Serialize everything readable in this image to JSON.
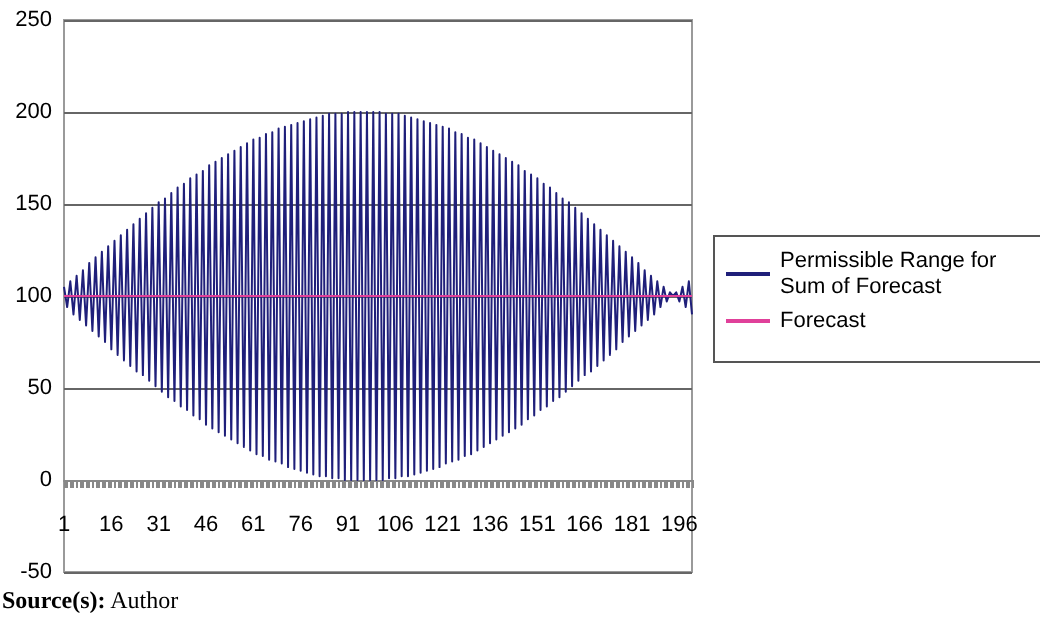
{
  "chart_data": {
    "type": "line",
    "categories": [
      "1",
      null,
      null,
      null,
      null,
      null,
      null,
      null,
      null,
      null,
      null,
      null,
      null,
      null,
      null,
      "16",
      null,
      null,
      null,
      null,
      null,
      null,
      null,
      null,
      null,
      null,
      null,
      null,
      null,
      null,
      "31",
      null,
      null,
      null,
      null,
      null,
      null,
      null,
      null,
      null,
      null,
      null,
      null,
      null,
      null,
      "46",
      null,
      null,
      null,
      null,
      null,
      null,
      null,
      null,
      null,
      null,
      null,
      null,
      null,
      null,
      "61",
      null,
      null,
      null,
      null,
      null,
      null,
      null,
      null,
      null,
      null,
      null,
      null,
      null,
      null,
      "76",
      null,
      null,
      null,
      null,
      null,
      null,
      null,
      null,
      null,
      null,
      null,
      null,
      null,
      null,
      "91",
      null,
      null,
      null,
      null,
      null,
      null,
      null,
      null,
      null,
      null,
      null,
      null,
      null,
      null,
      "106",
      null,
      null,
      null,
      null,
      null,
      null,
      null,
      null,
      null,
      null,
      null,
      null,
      null,
      null,
      "121",
      null,
      null,
      null,
      null,
      null,
      null,
      null,
      null,
      null,
      null,
      null,
      null,
      null,
      null,
      "136",
      null,
      null,
      null,
      null,
      null,
      null,
      null,
      null,
      null,
      null,
      null,
      null,
      null,
      null,
      "151",
      null,
      null,
      null,
      null,
      null,
      null,
      null,
      null,
      null,
      null,
      null,
      null,
      null,
      null,
      "166",
      null,
      null,
      null,
      null,
      null,
      null,
      null,
      null,
      null,
      null,
      null,
      null,
      null,
      null,
      "181",
      null,
      null,
      null,
      null,
      null,
      null,
      null,
      null,
      null,
      null,
      null,
      null,
      null,
      null,
      "196",
      null,
      null,
      null,
      null
    ],
    "series": [
      {
        "name": "Permissible Range for Sum of Forecast",
        "color": "#1f1f7a",
        "values": [
          105,
          94,
          108,
          90,
          111,
          87,
          114,
          84,
          118,
          81,
          121,
          78,
          124,
          75,
          127,
          71,
          130,
          68,
          133,
          65,
          136,
          62,
          139,
          59,
          142,
          57,
          145,
          54,
          148,
          51,
          151,
          48,
          153,
          45,
          156,
          43,
          159,
          40,
          161,
          38,
          164,
          35,
          166,
          33,
          168,
          30,
          171,
          28,
          173,
          26,
          175,
          24,
          177,
          22,
          179,
          20,
          181,
          18,
          183,
          16,
          185,
          14,
          186,
          13,
          188,
          11,
          189,
          10,
          191,
          9,
          192,
          7,
          193,
          6,
          194,
          5,
          195,
          4,
          196,
          3,
          197,
          2,
          198,
          2,
          199,
          1,
          199,
          1,
          199,
          0,
          200,
          0,
          200,
          0,
          200,
          0,
          200,
          0,
          200,
          0,
          200,
          0,
          199,
          1,
          199,
          1,
          199,
          2,
          198,
          2,
          197,
          3,
          196,
          4,
          195,
          5,
          194,
          6,
          193,
          7,
          192,
          9,
          191,
          10,
          189,
          11,
          188,
          13,
          186,
          14,
          185,
          16,
          183,
          18,
          181,
          20,
          179,
          22,
          177,
          24,
          175,
          26,
          173,
          28,
          171,
          30,
          168,
          33,
          166,
          35,
          164,
          38,
          161,
          40,
          159,
          43,
          156,
          45,
          153,
          48,
          151,
          51,
          148,
          54,
          145,
          57,
          142,
          59,
          139,
          62,
          136,
          65,
          133,
          68,
          130,
          71,
          127,
          75,
          124,
          78,
          121,
          81,
          118,
          84,
          114,
          87,
          111,
          90,
          108,
          94,
          105,
          97,
          102,
          100,
          102,
          97,
          105,
          94,
          108,
          90
        ]
      },
      {
        "name": "Forecast",
        "color": "#e0409a",
        "values": [
          100,
          100,
          100,
          100,
          100,
          100,
          100,
          100,
          100,
          100,
          100,
          100,
          100,
          100,
          100,
          100,
          100,
          100,
          100,
          100,
          100,
          100,
          100,
          100,
          100,
          100,
          100,
          100,
          100,
          100,
          100,
          100,
          100,
          100,
          100,
          100,
          100,
          100,
          100,
          100,
          100,
          100,
          100,
          100,
          100,
          100,
          100,
          100,
          100,
          100,
          100,
          100,
          100,
          100,
          100,
          100,
          100,
          100,
          100,
          100,
          100,
          100,
          100,
          100,
          100,
          100,
          100,
          100,
          100,
          100,
          100,
          100,
          100,
          100,
          100,
          100,
          100,
          100,
          100,
          100,
          100,
          100,
          100,
          100,
          100,
          100,
          100,
          100,
          100,
          100,
          100,
          100,
          100,
          100,
          100,
          100,
          100,
          100,
          100,
          100,
          100,
          100,
          100,
          100,
          100,
          100,
          100,
          100,
          100,
          100,
          100,
          100,
          100,
          100,
          100,
          100,
          100,
          100,
          100,
          100,
          100,
          100,
          100,
          100,
          100,
          100,
          100,
          100,
          100,
          100,
          100,
          100,
          100,
          100,
          100,
          100,
          100,
          100,
          100,
          100,
          100,
          100,
          100,
          100,
          100,
          100,
          100,
          100,
          100,
          100,
          100,
          100,
          100,
          100,
          100,
          100,
          100,
          100,
          100,
          100,
          100,
          100,
          100,
          100,
          100,
          100,
          100,
          100,
          100,
          100,
          100,
          100,
          100,
          100,
          100,
          100,
          100,
          100,
          100,
          100,
          100,
          100,
          100,
          100,
          100,
          100,
          100,
          100,
          100,
          100,
          100,
          100,
          100,
          100,
          100,
          100,
          100,
          100,
          100,
          100
        ]
      }
    ],
    "ylim": [
      -50,
      250
    ],
    "yticks": [
      -50,
      0,
      50,
      100,
      150,
      200,
      250
    ],
    "grid": "y",
    "legend": "right",
    "marker": "none",
    "line_style": "solid",
    "annotations": [
      "Source(s): Author"
    ]
  }
}
